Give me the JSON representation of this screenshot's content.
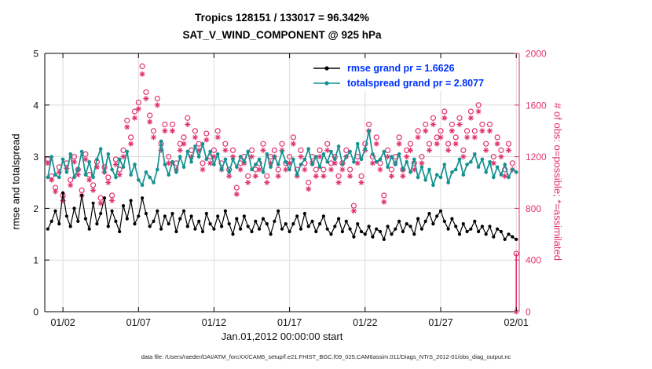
{
  "caption": "data file: /Users/raeder/DAI/ATM_forcXX/CAM6_setup/f.e21.FHIST_BGC.f09_025.CAM6assim.011/Diags_NTrS_2012-01/obs_diag_output.nc",
  "chart_data": {
    "type": "line",
    "title": [
      "Tropics 128151 / 133017 = 96.342%",
      "SAT_V_WIND_COMPONENT @ 925 hPa"
    ],
    "xlabel": "Jan.01,2012 00:00:00 start",
    "ylabel_left": "rmse and totalspread",
    "ylabel_right": "# of obs: o=possible; *=assimilated",
    "x_tick_labels": [
      "01/02",
      "01/07",
      "01/12",
      "01/17",
      "01/22",
      "01/27",
      "02/01"
    ],
    "x_tick_days": [
      2,
      7,
      12,
      17,
      22,
      27,
      32
    ],
    "xlim_days": [
      0.8,
      32.2
    ],
    "ylim_left": [
      0,
      5
    ],
    "ylim_right": [
      0,
      2000
    ],
    "left_ticks": [
      0,
      1,
      2,
      3,
      4,
      5
    ],
    "right_ticks": [
      0,
      400,
      800,
      1200,
      1600,
      2000
    ],
    "grid": true,
    "grid_color": "#dcdcdc",
    "axis_colors": {
      "left": "#000000",
      "right": "#e1336f"
    },
    "x_start_day": 1,
    "x_step_days": 0.25,
    "series": [
      {
        "name": "rmse",
        "legend": "rmse grand pr = 1.6626",
        "color": "#000000",
        "marker": "dot",
        "line": true,
        "axis": "left",
        "values": [
          1.6,
          1.75,
          1.95,
          1.7,
          2.3,
          1.85,
          1.65,
          2.0,
          1.75,
          2.25,
          1.8,
          1.6,
          2.1,
          1.7,
          1.9,
          2.2,
          1.65,
          1.95,
          1.75,
          1.55,
          2.05,
          1.8,
          2.15,
          1.7,
          1.85,
          2.2,
          1.9,
          1.65,
          1.75,
          1.95,
          1.6,
          1.85,
          1.7,
          1.9,
          1.55,
          1.8,
          1.95,
          1.65,
          1.85,
          1.6,
          1.75,
          1.55,
          1.9,
          1.7,
          1.6,
          1.85,
          1.65,
          1.95,
          1.7,
          1.5,
          1.8,
          1.6,
          1.85,
          1.65,
          1.55,
          1.75,
          1.6,
          1.8,
          1.7,
          1.5,
          1.75,
          1.95,
          1.6,
          1.7,
          1.55,
          1.7,
          1.85,
          1.6,
          1.9,
          1.65,
          1.75,
          1.55,
          1.7,
          1.85,
          1.6,
          1.5,
          1.65,
          1.8,
          1.55,
          1.75,
          1.6,
          1.45,
          1.7,
          1.55,
          1.5,
          1.65,
          1.45,
          1.6,
          1.55,
          1.4,
          1.65,
          1.5,
          1.6,
          1.75,
          1.55,
          1.7,
          1.65,
          1.5,
          1.8,
          1.6,
          1.75,
          1.9,
          1.7,
          1.85,
          1.95,
          1.75,
          1.6,
          1.8,
          1.65,
          1.5,
          1.7,
          1.55,
          1.6,
          1.75,
          1.55,
          1.65,
          1.5,
          1.65,
          1.45,
          1.6,
          1.55,
          1.4,
          1.5,
          1.45,
          1.4
        ]
      },
      {
        "name": "totalspread",
        "legend": "totalspread grand pr = 2.8077",
        "color": "#149191",
        "marker": "dot",
        "line": true,
        "axis": "left",
        "values": [
          2.6,
          3.0,
          2.65,
          2.6,
          2.95,
          2.7,
          3.05,
          2.6,
          2.75,
          3.1,
          2.65,
          2.9,
          2.6,
          2.95,
          3.15,
          2.7,
          3.05,
          2.75,
          2.6,
          2.95,
          2.8,
          3.1,
          2.65,
          2.85,
          2.55,
          2.45,
          2.7,
          2.6,
          2.5,
          2.75,
          3.3,
          2.85,
          2.65,
          2.9,
          2.7,
          3.0,
          2.8,
          3.1,
          2.9,
          3.2,
          3.0,
          3.25,
          2.95,
          3.1,
          2.85,
          3.05,
          2.75,
          2.95,
          2.7,
          2.95,
          2.8,
          3.0,
          2.9,
          3.1,
          2.75,
          2.85,
          2.95,
          2.7,
          3.05,
          2.8,
          3.0,
          2.85,
          3.1,
          2.9,
          2.75,
          2.95,
          2.65,
          2.85,
          2.95,
          3.15,
          2.85,
          3.0,
          2.8,
          3.05,
          2.9,
          3.1,
          2.95,
          3.2,
          2.85,
          3.0,
          3.1,
          2.9,
          3.25,
          2.95,
          3.15,
          3.5,
          3.05,
          2.9,
          2.95,
          3.1,
          2.8,
          3.0,
          2.85,
          3.05,
          2.75,
          2.9,
          2.7,
          2.95,
          2.6,
          2.8,
          2.55,
          2.75,
          2.45,
          2.65,
          2.6,
          2.85,
          2.5,
          2.7,
          2.75,
          2.95,
          2.65,
          2.85,
          2.9,
          3.05,
          2.8,
          2.95,
          2.7,
          2.9,
          2.6,
          2.8,
          2.65,
          2.85,
          2.6,
          2.75,
          2.7
        ]
      },
      {
        "name": "obs-possible",
        "legend": "o=possible",
        "color": "#e1336f",
        "marker": "circle",
        "line": false,
        "axis": "right",
        "values": [
          1180,
          1050,
          960,
          1120,
          900,
          1150,
          1020,
          1200,
          1100,
          940,
          1220,
          1060,
          980,
          1160,
          880,
          1120,
          1040,
          900,
          1180,
          1100,
          1250,
          1480,
          1350,
          1550,
          1620,
          1900,
          1700,
          1520,
          1400,
          1650,
          1300,
          1450,
          1200,
          1450,
          1150,
          1300,
          1350,
          1500,
          1250,
          1400,
          1300,
          1150,
          1380,
          1200,
          1250,
          1400,
          1150,
          1300,
          1100,
          1250,
          960,
          1150,
          1200,
          1050,
          1250,
          1100,
          1150,
          1300,
          1050,
          1200,
          1250,
          1100,
          1300,
          1150,
          1200,
          1350,
          1100,
          1250,
          1150,
          1000,
          1200,
          1100,
          1250,
          1100,
          1300,
          1150,
          1200,
          1050,
          1150,
          1250,
          1100,
          820,
          1200,
          1050,
          1300,
          1450,
          1200,
          1350,
          1150,
          900,
          1250,
          1100,
          1200,
          1350,
          1100,
          1250,
          1300,
          1150,
          1400,
          1200,
          1450,
          1300,
          1500,
          1350,
          1400,
          1550,
          1300,
          1450,
          1350,
          1500,
          1250,
          1400,
          1550,
          1400,
          1600,
          1450,
          1300,
          1450,
          1200,
          1350,
          1250,
          1100,
          1300,
          1150,
          450
        ]
      },
      {
        "name": "obs-assimilated",
        "legend": "*=assimilated",
        "color": "#e1336f",
        "marker": "asterisk",
        "line": false,
        "axis": "right",
        "values": [
          1150,
          1020,
          930,
          1080,
          860,
          1110,
          980,
          1160,
          1060,
          900,
          1180,
          1020,
          940,
          1120,
          840,
          1080,
          1000,
          860,
          1140,
          1060,
          1200,
          1430,
          1300,
          1500,
          1570,
          1840,
          1650,
          1470,
          1350,
          1600,
          1250,
          1400,
          1150,
          1400,
          1100,
          1250,
          1300,
          1450,
          1200,
          1350,
          1250,
          1100,
          1330,
          1150,
          1200,
          1350,
          1100,
          1250,
          1050,
          1200,
          910,
          1100,
          1150,
          1000,
          1200,
          1050,
          1100,
          1250,
          1000,
          1150,
          1200,
          1050,
          1250,
          1100,
          1150,
          1300,
          1050,
          1200,
          1100,
          950,
          1150,
          1050,
          1200,
          1050,
          1250,
          1100,
          1150,
          1000,
          1100,
          1200,
          1050,
          780,
          1150,
          1000,
          1250,
          1400,
          1150,
          1300,
          1100,
          850,
          1200,
          1050,
          1150,
          1300,
          1050,
          1200,
          1250,
          1100,
          1350,
          1150,
          1400,
          1250,
          1450,
          1300,
          1350,
          1500,
          1250,
          1400,
          1300,
          1450,
          1200,
          1350,
          1500,
          1350,
          1550,
          1400,
          1250,
          1400,
          1150,
          1300,
          1200,
          1050,
          1250,
          1100,
          0
        ]
      }
    ],
    "final_drop": {
      "day": 32,
      "from": 450,
      "to": 0,
      "color": "#e1336f"
    },
    "legend": {
      "position": "upper right",
      "text_color": "#0033ff",
      "entries": [
        {
          "label": "rmse grand pr = 1.6626",
          "color": "#000000"
        },
        {
          "label": "totalspread grand pr = 2.8077",
          "color": "#149191"
        }
      ]
    }
  }
}
